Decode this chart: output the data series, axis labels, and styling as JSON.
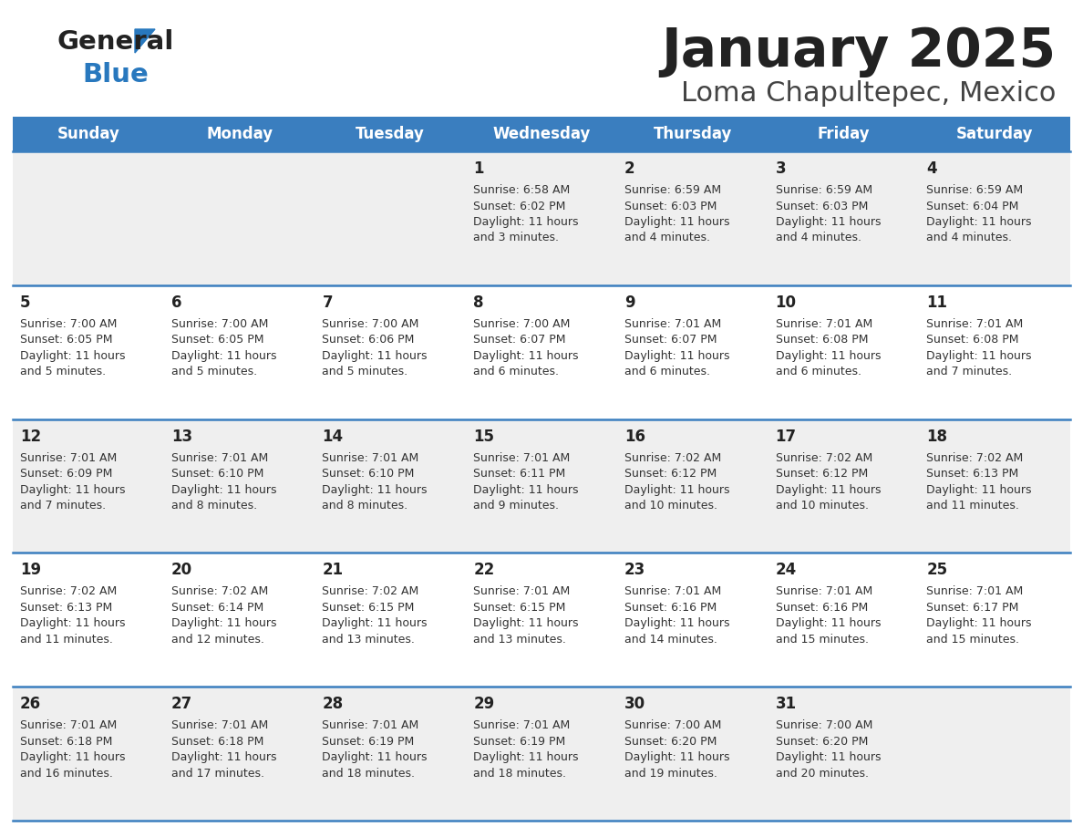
{
  "title": "January 2025",
  "subtitle": "Loma Chapultepec, Mexico",
  "days_of_week": [
    "Sunday",
    "Monday",
    "Tuesday",
    "Wednesday",
    "Thursday",
    "Friday",
    "Saturday"
  ],
  "header_bg": "#3a7ebf",
  "header_text": "#ffffff",
  "row_bg_odd": "#efefef",
  "row_bg_even": "#ffffff",
  "divider_color": "#3a7ebf",
  "cell_text_color": "#333333",
  "day_number_color": "#222222",
  "title_color": "#222222",
  "subtitle_color": "#444444",
  "logo_general_color": "#222222",
  "logo_blue_color": "#2878be",
  "weeks": [
    [
      {
        "day": null,
        "sunrise": null,
        "sunset": null,
        "daylight": null
      },
      {
        "day": null,
        "sunrise": null,
        "sunset": null,
        "daylight": null
      },
      {
        "day": null,
        "sunrise": null,
        "sunset": null,
        "daylight": null
      },
      {
        "day": 1,
        "sunrise": "6:58 AM",
        "sunset": "6:02 PM",
        "daylight": "11 hours\nand 3 minutes."
      },
      {
        "day": 2,
        "sunrise": "6:59 AM",
        "sunset": "6:03 PM",
        "daylight": "11 hours\nand 4 minutes."
      },
      {
        "day": 3,
        "sunrise": "6:59 AM",
        "sunset": "6:03 PM",
        "daylight": "11 hours\nand 4 minutes."
      },
      {
        "day": 4,
        "sunrise": "6:59 AM",
        "sunset": "6:04 PM",
        "daylight": "11 hours\nand 4 minutes."
      }
    ],
    [
      {
        "day": 5,
        "sunrise": "7:00 AM",
        "sunset": "6:05 PM",
        "daylight": "11 hours\nand 5 minutes."
      },
      {
        "day": 6,
        "sunrise": "7:00 AM",
        "sunset": "6:05 PM",
        "daylight": "11 hours\nand 5 minutes."
      },
      {
        "day": 7,
        "sunrise": "7:00 AM",
        "sunset": "6:06 PM",
        "daylight": "11 hours\nand 5 minutes."
      },
      {
        "day": 8,
        "sunrise": "7:00 AM",
        "sunset": "6:07 PM",
        "daylight": "11 hours\nand 6 minutes."
      },
      {
        "day": 9,
        "sunrise": "7:01 AM",
        "sunset": "6:07 PM",
        "daylight": "11 hours\nand 6 minutes."
      },
      {
        "day": 10,
        "sunrise": "7:01 AM",
        "sunset": "6:08 PM",
        "daylight": "11 hours\nand 6 minutes."
      },
      {
        "day": 11,
        "sunrise": "7:01 AM",
        "sunset": "6:08 PM",
        "daylight": "11 hours\nand 7 minutes."
      }
    ],
    [
      {
        "day": 12,
        "sunrise": "7:01 AM",
        "sunset": "6:09 PM",
        "daylight": "11 hours\nand 7 minutes."
      },
      {
        "day": 13,
        "sunrise": "7:01 AM",
        "sunset": "6:10 PM",
        "daylight": "11 hours\nand 8 minutes."
      },
      {
        "day": 14,
        "sunrise": "7:01 AM",
        "sunset": "6:10 PM",
        "daylight": "11 hours\nand 8 minutes."
      },
      {
        "day": 15,
        "sunrise": "7:01 AM",
        "sunset": "6:11 PM",
        "daylight": "11 hours\nand 9 minutes."
      },
      {
        "day": 16,
        "sunrise": "7:02 AM",
        "sunset": "6:12 PM",
        "daylight": "11 hours\nand 10 minutes."
      },
      {
        "day": 17,
        "sunrise": "7:02 AM",
        "sunset": "6:12 PM",
        "daylight": "11 hours\nand 10 minutes."
      },
      {
        "day": 18,
        "sunrise": "7:02 AM",
        "sunset": "6:13 PM",
        "daylight": "11 hours\nand 11 minutes."
      }
    ],
    [
      {
        "day": 19,
        "sunrise": "7:02 AM",
        "sunset": "6:13 PM",
        "daylight": "11 hours\nand 11 minutes."
      },
      {
        "day": 20,
        "sunrise": "7:02 AM",
        "sunset": "6:14 PM",
        "daylight": "11 hours\nand 12 minutes."
      },
      {
        "day": 21,
        "sunrise": "7:02 AM",
        "sunset": "6:15 PM",
        "daylight": "11 hours\nand 13 minutes."
      },
      {
        "day": 22,
        "sunrise": "7:01 AM",
        "sunset": "6:15 PM",
        "daylight": "11 hours\nand 13 minutes."
      },
      {
        "day": 23,
        "sunrise": "7:01 AM",
        "sunset": "6:16 PM",
        "daylight": "11 hours\nand 14 minutes."
      },
      {
        "day": 24,
        "sunrise": "7:01 AM",
        "sunset": "6:16 PM",
        "daylight": "11 hours\nand 15 minutes."
      },
      {
        "day": 25,
        "sunrise": "7:01 AM",
        "sunset": "6:17 PM",
        "daylight": "11 hours\nand 15 minutes."
      }
    ],
    [
      {
        "day": 26,
        "sunrise": "7:01 AM",
        "sunset": "6:18 PM",
        "daylight": "11 hours\nand 16 minutes."
      },
      {
        "day": 27,
        "sunrise": "7:01 AM",
        "sunset": "6:18 PM",
        "daylight": "11 hours\nand 17 minutes."
      },
      {
        "day": 28,
        "sunrise": "7:01 AM",
        "sunset": "6:19 PM",
        "daylight": "11 hours\nand 18 minutes."
      },
      {
        "day": 29,
        "sunrise": "7:01 AM",
        "sunset": "6:19 PM",
        "daylight": "11 hours\nand 18 minutes."
      },
      {
        "day": 30,
        "sunrise": "7:00 AM",
        "sunset": "6:20 PM",
        "daylight": "11 hours\nand 19 minutes."
      },
      {
        "day": 31,
        "sunrise": "7:00 AM",
        "sunset": "6:20 PM",
        "daylight": "11 hours\nand 20 minutes."
      },
      {
        "day": null,
        "sunrise": null,
        "sunset": null,
        "daylight": null
      }
    ]
  ]
}
